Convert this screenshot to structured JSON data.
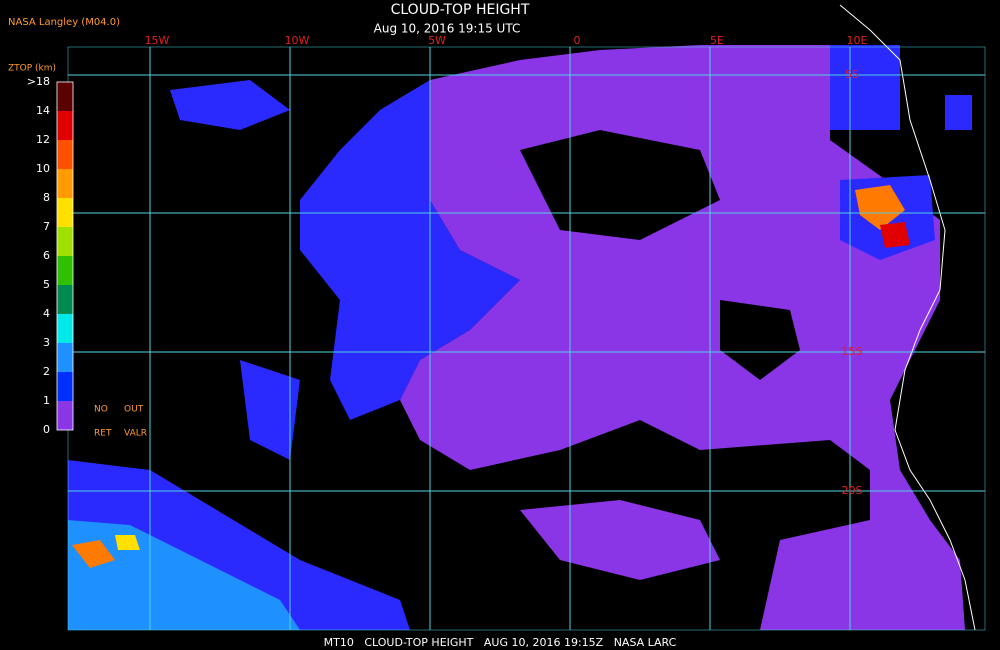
{
  "header": {
    "source": "NASA Langley (M04.0)",
    "title": "CLOUD-TOP HEIGHT",
    "subtitle": "Aug 10, 2016 19:15 UTC"
  },
  "map": {
    "longitude_labels": [
      "15W",
      "10W",
      "5W",
      "0",
      "5E",
      "10E"
    ],
    "latitude_labels": [
      "5S",
      "15S",
      "20S"
    ]
  },
  "legend": {
    "title": "ZTOP (km)",
    "labels": [
      ">18",
      "14",
      "12",
      "10",
      "8",
      "7",
      "6",
      "5",
      "4",
      "3",
      "2",
      "1",
      "0"
    ],
    "notes": [
      "NO",
      "OUT",
      "RET",
      "VALR"
    ]
  },
  "footer": "MT10   CLOUD-TOP HEIGHT   AUG 10, 2016 19:15Z   NASA LARC"
}
